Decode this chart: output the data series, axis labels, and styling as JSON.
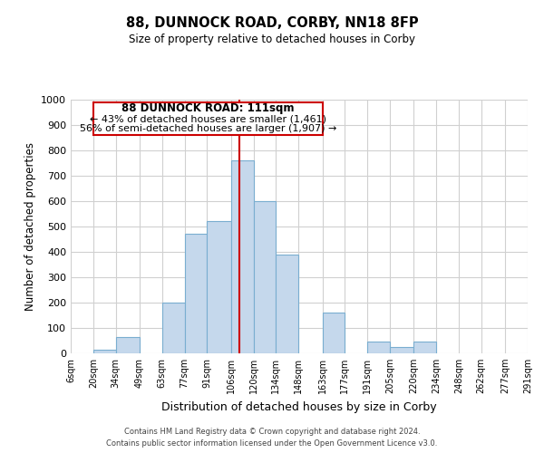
{
  "title": "88, DUNNOCK ROAD, CORBY, NN18 8FP",
  "subtitle": "Size of property relative to detached houses in Corby",
  "xlabel": "Distribution of detached houses by size in Corby",
  "ylabel": "Number of detached properties",
  "bin_labels": [
    "6sqm",
    "20sqm",
    "34sqm",
    "49sqm",
    "63sqm",
    "77sqm",
    "91sqm",
    "106sqm",
    "120sqm",
    "134sqm",
    "148sqm",
    "163sqm",
    "177sqm",
    "191sqm",
    "205sqm",
    "220sqm",
    "234sqm",
    "248sqm",
    "262sqm",
    "277sqm",
    "291sqm"
  ],
  "bin_edges": [
    6,
    20,
    34,
    49,
    63,
    77,
    91,
    106,
    120,
    134,
    148,
    163,
    177,
    191,
    205,
    220,
    234,
    248,
    262,
    277,
    291
  ],
  "bar_heights": [
    0,
    15,
    65,
    0,
    200,
    470,
    520,
    760,
    600,
    390,
    0,
    160,
    0,
    45,
    25,
    47,
    0,
    0,
    0,
    0,
    0
  ],
  "bar_color": "#c5d8ec",
  "bar_edge_color": "#7aaed0",
  "property_line_x": 111,
  "property_line_color": "#cc0000",
  "ylim": [
    0,
    1000
  ],
  "yticks": [
    0,
    100,
    200,
    300,
    400,
    500,
    600,
    700,
    800,
    900,
    1000
  ],
  "annotation_title": "88 DUNNOCK ROAD: 111sqm",
  "annotation_line1": "← 43% of detached houses are smaller (1,461)",
  "annotation_line2": "56% of semi-detached houses are larger (1,907) →",
  "annotation_box_color": "#ffffff",
  "annotation_box_edge": "#cc0000",
  "footer_line1": "Contains HM Land Registry data © Crown copyright and database right 2024.",
  "footer_line2": "Contains public sector information licensed under the Open Government Licence v3.0.",
  "background_color": "#ffffff",
  "grid_color": "#d0d0d0"
}
